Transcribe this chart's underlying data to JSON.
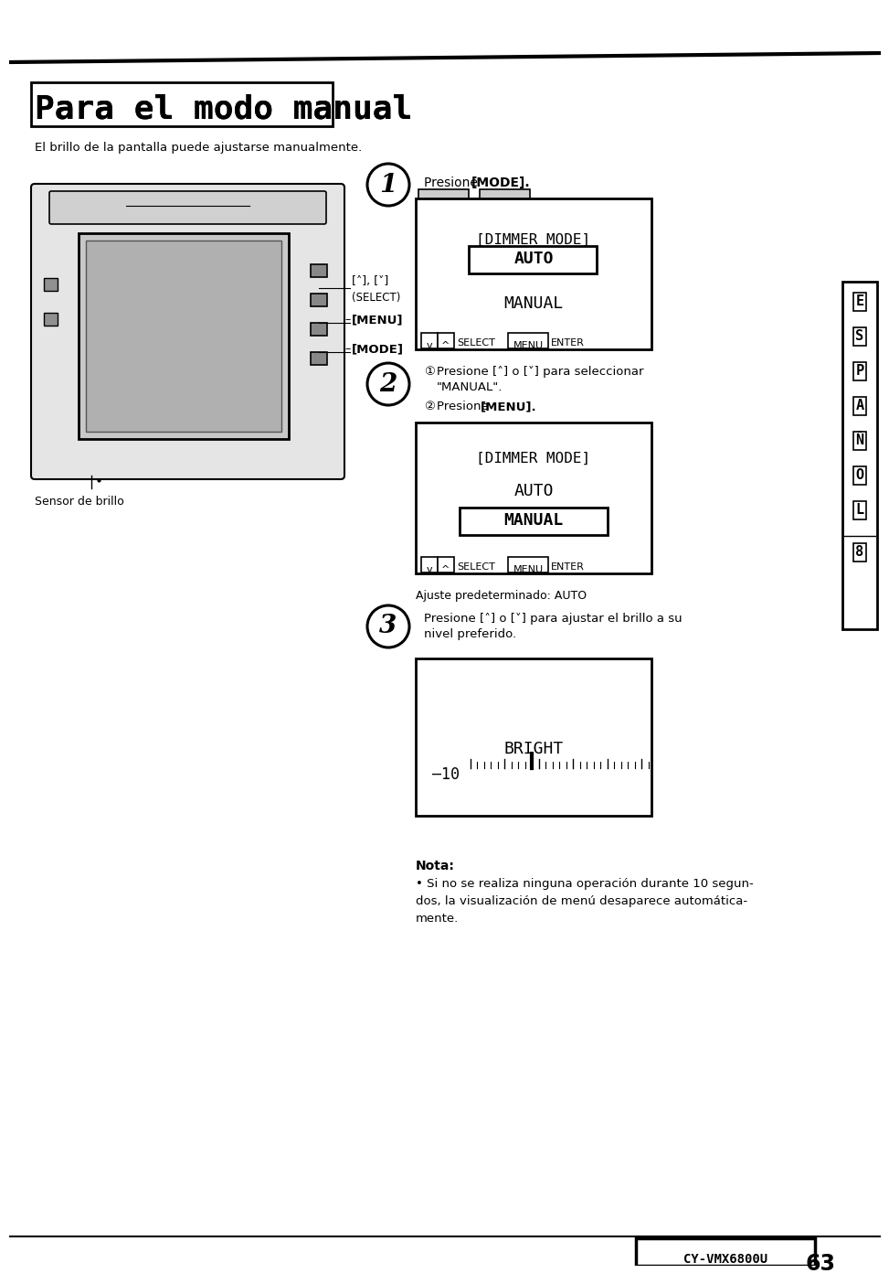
{
  "bg_color": "#ffffff",
  "title": "Para el modo manual",
  "subtitle": "El brillo de la pantalla puede ajustarse manualmente.",
  "footer_model": "CY-VMX6800U",
  "page_num": "63",
  "side_letters": [
    "E",
    "S",
    "P",
    "A",
    "Ñ",
    "O",
    "L",
    "8"
  ]
}
